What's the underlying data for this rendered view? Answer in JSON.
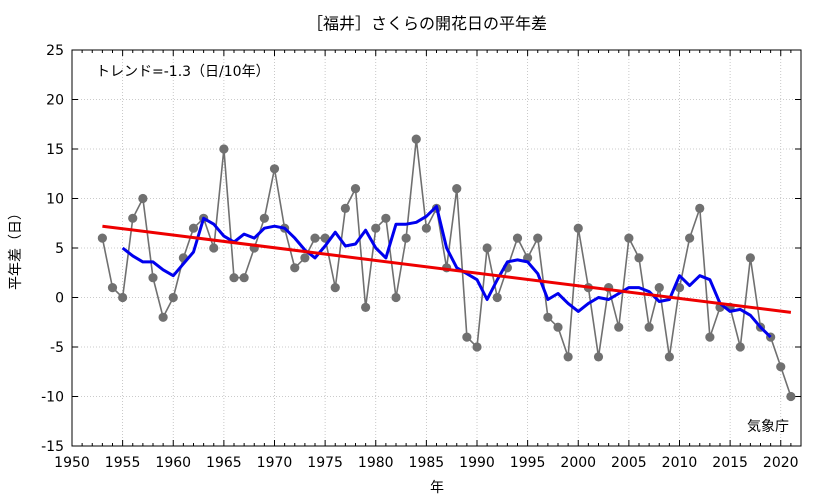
{
  "chart_data": {
    "type": "line",
    "title": "［福井］さくらの開花日の平年差",
    "xlabel": "年",
    "ylabel": "平年差（日）",
    "xlim": [
      1950,
      2022
    ],
    "ylim": [
      -15,
      25
    ],
    "xticks": [
      1950,
      1955,
      1960,
      1965,
      1970,
      1975,
      1980,
      1985,
      1990,
      1995,
      2000,
      2005,
      2010,
      2015,
      2020
    ],
    "yticks": [
      -15,
      -10,
      -5,
      0,
      5,
      10,
      15,
      20,
      25
    ],
    "grid": true,
    "trend_label": "トレンド=-1.3（日/10年）",
    "source_label": "気象庁",
    "colors": {
      "annual": "#707070",
      "moving_avg": "#0000ee",
      "trend": "#ee0000"
    },
    "series": [
      {
        "kind": "annual",
        "x": [
          1953,
          1954,
          1955,
          1956,
          1957,
          1958,
          1959,
          1960,
          1961,
          1962,
          1963,
          1964,
          1965,
          1966,
          1967,
          1968,
          1969,
          1970,
          1971,
          1972,
          1973,
          1974,
          1975,
          1976,
          1977,
          1978,
          1979,
          1980,
          1981,
          1982,
          1983,
          1984,
          1985,
          1986,
          1987,
          1988,
          1989,
          1990,
          1991,
          1992,
          1993,
          1994,
          1995,
          1996,
          1997,
          1998,
          1999,
          2000,
          2001,
          2002,
          2003,
          2004,
          2005,
          2006,
          2007,
          2008,
          2009,
          2010,
          2011,
          2012,
          2013,
          2014,
          2015,
          2016,
          2017,
          2018,
          2019,
          2020,
          2021
        ],
        "values": [
          6,
          1,
          0,
          8,
          10,
          2,
          -2,
          0,
          4,
          7,
          8,
          5,
          15,
          2,
          2,
          5,
          8,
          13,
          7,
          3,
          4,
          6,
          6,
          1,
          9,
          11,
          -1,
          7,
          8,
          0,
          6,
          16,
          7,
          9,
          3,
          11,
          -4,
          -5,
          5,
          0,
          3,
          6,
          4,
          6,
          -2,
          -3,
          -6,
          7,
          1,
          -6,
          1,
          -3,
          6,
          4,
          -3,
          1,
          -6,
          1,
          6,
          9,
          -4,
          -1,
          -1,
          -5,
          4,
          -3,
          -4,
          -7,
          -10
        ]
      },
      {
        "kind": "moving_avg",
        "x": [
          1955,
          1956,
          1957,
          1958,
          1959,
          1960,
          1961,
          1962,
          1963,
          1964,
          1965,
          1966,
          1967,
          1968,
          1969,
          1970,
          1971,
          1972,
          1973,
          1974,
          1975,
          1976,
          1977,
          1978,
          1979,
          1980,
          1981,
          1982,
          1983,
          1984,
          1985,
          1986,
          1987,
          1988,
          1989,
          1990,
          1991,
          1992,
          1993,
          1994,
          1995,
          1996,
          1997,
          1998,
          1999,
          2000,
          2001,
          2002,
          2003,
          2004,
          2005,
          2006,
          2007,
          2008,
          2009,
          2010,
          2011,
          2012,
          2013,
          2014,
          2015,
          2016,
          2017,
          2018,
          2019
        ],
        "values": [
          5,
          4.2,
          3.6,
          3.6,
          2.8,
          2.2,
          3.4,
          4.6,
          8,
          7.4,
          6.2,
          5.6,
          6.4,
          6,
          7,
          7.2,
          7,
          6,
          4.8,
          4,
          5.2,
          6.6,
          5.2,
          5.4,
          6.8,
          5,
          4,
          7.4,
          7.4,
          7.6,
          8.2,
          9.2,
          5,
          3,
          2.4,
          1.8,
          -0.2,
          1.8,
          3.6,
          3.8,
          3.6,
          2.4,
          -0.2,
          0.4,
          -0.6,
          -1.4,
          -0.6,
          0,
          -0.2,
          0.4,
          1,
          1,
          0.6,
          -0.4,
          -0.2,
          2.2,
          1.2,
          2.2,
          1.8,
          -0.6,
          -1.4,
          -1.2,
          -1.8,
          -3,
          -4
        ]
      },
      {
        "kind": "trend",
        "x": [
          1953,
          2021
        ],
        "values": [
          7.2,
          -1.5
        ]
      }
    ]
  }
}
